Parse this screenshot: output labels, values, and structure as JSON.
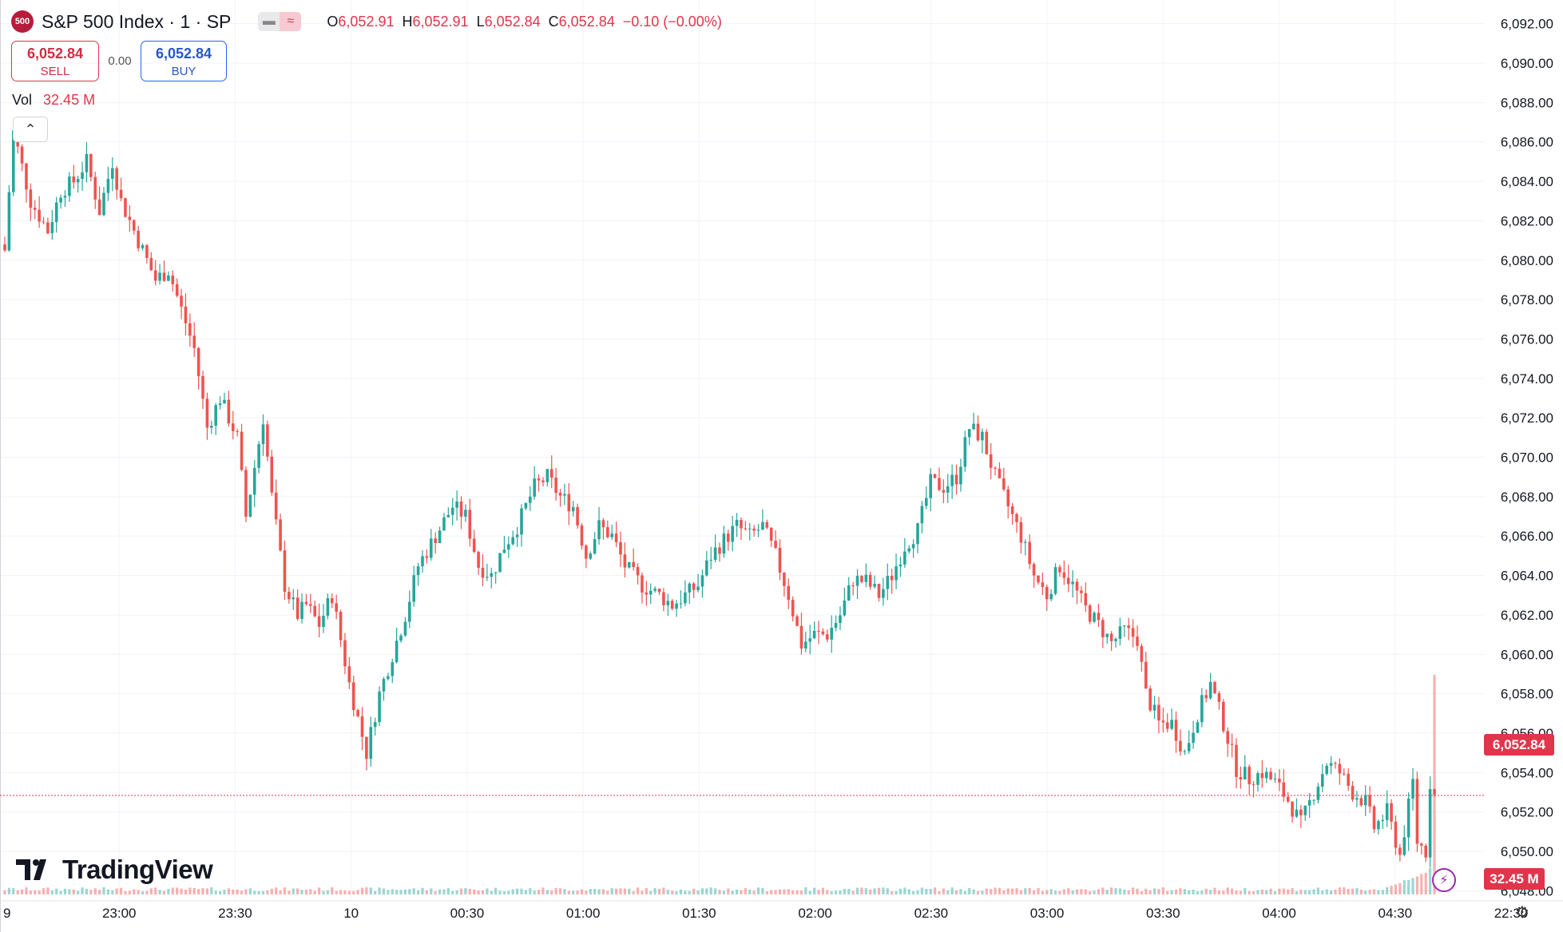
{
  "header": {
    "symbol_badge": "500",
    "title": "S&P 500 Index · 1 · SP",
    "ohlc": {
      "o_label": "O",
      "o": "6,052.91",
      "h_label": "H",
      "h": "6,052.91",
      "l_label": "L",
      "l": "6,052.84",
      "c_label": "C",
      "c": "6,052.84",
      "change": "−0.10 (−0.00%)"
    }
  },
  "trade": {
    "sell_price": "6,052.84",
    "sell_label": "SELL",
    "spread": "0.00",
    "buy_price": "6,052.84",
    "buy_label": "BUY"
  },
  "volume_legend": {
    "label": "Vol",
    "value": "32.45 M"
  },
  "brand": {
    "name": "TradingView"
  },
  "price_tag": "6,052.84",
  "volume_tag": "32.45 M",
  "colors": {
    "up": "#26a69a",
    "down": "#ef5350",
    "price_tag": "#e0354b"
  },
  "icons": {
    "collapse": "chevron-up-icon",
    "replay": "lightning-icon",
    "settings": "gear-icon"
  },
  "chart_data": {
    "type": "candlestick",
    "ylim": [
      6046.6,
      6093.2
    ],
    "y_ticks": [
      "6,092.00",
      "6,090.00",
      "6,088.00",
      "6,086.00",
      "6,084.00",
      "6,082.00",
      "6,080.00",
      "6,078.00",
      "6,076.00",
      "6,074.00",
      "6,072.00",
      "6,070.00",
      "6,068.00",
      "6,066.00",
      "6,064.00",
      "6,062.00",
      "6,060.00",
      "6,058.00",
      "6,056.00",
      "6,054.00",
      "6,052.00",
      "6,050.00",
      "6,048.00"
    ],
    "x_ticks": [
      "9",
      "23:00",
      "23:30",
      "10",
      "00:30",
      "01:00",
      "01:30",
      "02:00",
      "02:30",
      "03:00",
      "03:30",
      "04:00",
      "04:30",
      "22:30"
    ],
    "current_price": 6052.84,
    "path": [
      [
        0,
        6080.5
      ],
      [
        2,
        6086.5
      ],
      [
        6,
        6083
      ],
      [
        10,
        6081.5
      ],
      [
        13,
        6083.5
      ],
      [
        16,
        6084
      ],
      [
        19,
        6085
      ],
      [
        22,
        6082.5
      ],
      [
        25,
        6085
      ],
      [
        27,
        6083
      ],
      [
        31,
        6081
      ],
      [
        35,
        6079
      ],
      [
        38,
        6079.5
      ],
      [
        41,
        6077.5
      ],
      [
        44,
        6075.5
      ],
      [
        47,
        6071.5
      ],
      [
        50,
        6073
      ],
      [
        54,
        6071
      ],
      [
        56,
        6067
      ],
      [
        60,
        6072
      ],
      [
        62,
        6068
      ],
      [
        65,
        6063.5
      ],
      [
        68,
        6062
      ],
      [
        70,
        6062.5
      ],
      [
        73,
        6061.5
      ],
      [
        76,
        6063
      ],
      [
        80,
        6058.5
      ],
      [
        84,
        6055
      ],
      [
        87,
        6058
      ],
      [
        90,
        6060
      ],
      [
        93,
        6062
      ],
      [
        96,
        6064.5
      ],
      [
        100,
        6066
      ],
      [
        104,
        6067.5
      ],
      [
        107,
        6067
      ],
      [
        110,
        6064.5
      ],
      [
        113,
        6064
      ],
      [
        116,
        6065.5
      ],
      [
        119,
        6066.5
      ],
      [
        123,
        6068.5
      ],
      [
        126,
        6069
      ],
      [
        129,
        6068
      ],
      [
        132,
        6067.5
      ],
      [
        135,
        6065
      ],
      [
        138,
        6066.5
      ],
      [
        141,
        6066
      ],
      [
        144,
        6064.5
      ],
      [
        148,
        6063.5
      ],
      [
        152,
        6063
      ],
      [
        155,
        6062.5
      ],
      [
        158,
        6063
      ],
      [
        161,
        6063.5
      ],
      [
        164,
        6065
      ],
      [
        167,
        6065.8
      ],
      [
        170,
        6066.5
      ],
      [
        173,
        6066
      ],
      [
        176,
        6066.5
      ],
      [
        179,
        6065
      ],
      [
        182,
        6063
      ],
      [
        185,
        6060.5
      ],
      [
        188,
        6061
      ],
      [
        191,
        6061
      ],
      [
        194,
        6062
      ],
      [
        197,
        6063.8
      ],
      [
        200,
        6063.7
      ],
      [
        203,
        6063
      ],
      [
        206,
        6064
      ],
      [
        209,
        6065.5
      ],
      [
        212,
        6066.3
      ],
      [
        215,
        6068.7
      ],
      [
        218,
        6068.5
      ],
      [
        221,
        6069
      ],
      [
        224,
        6071.5
      ],
      [
        227,
        6071
      ],
      [
        230,
        6069
      ],
      [
        233,
        6067.5
      ],
      [
        236,
        6066
      ],
      [
        239,
        6064
      ],
      [
        242,
        6063
      ],
      [
        245,
        6064.5
      ],
      [
        248,
        6063.5
      ],
      [
        251,
        6062.3
      ],
      [
        254,
        6061.5
      ],
      [
        257,
        6060.6
      ],
      [
        260,
        6061.2
      ],
      [
        263,
        6060.8
      ],
      [
        265,
        6058
      ],
      [
        268,
        6056.5
      ],
      [
        271,
        6056.5
      ],
      [
        274,
        6055
      ],
      [
        277,
        6057
      ],
      [
        280,
        6058.5
      ],
      [
        283,
        6056.5
      ],
      [
        286,
        6054.2
      ],
      [
        289,
        6053.7
      ],
      [
        292,
        6054
      ],
      [
        295,
        6053.5
      ],
      [
        298,
        6052.6
      ],
      [
        301,
        6051.4
      ],
      [
        304,
        6053
      ],
      [
        307,
        6054.5
      ],
      [
        310,
        6054
      ],
      [
        313,
        6053
      ],
      [
        316,
        6052.5
      ],
      [
        318,
        6051.2
      ],
      [
        321,
        6052
      ],
      [
        324,
        6049.8
      ],
      [
        327,
        6053.5
      ],
      [
        328,
        6050.5
      ],
      [
        330,
        6050
      ],
      [
        331,
        6053.5
      ],
      [
        332,
        6052.85
      ]
    ]
  }
}
